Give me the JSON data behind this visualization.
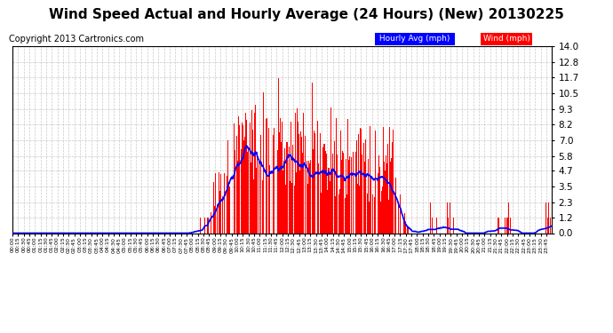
{
  "title": "Wind Speed Actual and Hourly Average (24 Hours) (New) 20130225",
  "copyright": "Copyright 2013 Cartronics.com",
  "yticks": [
    0.0,
    1.2,
    2.3,
    3.5,
    4.7,
    5.8,
    7.0,
    8.2,
    9.3,
    10.5,
    11.7,
    12.8,
    14.0
  ],
  "ylim": [
    0.0,
    14.0
  ],
  "bar_color": "#FF0000",
  "line_color": "#0000FF",
  "bg_color": "#FFFFFF",
  "grid_color": "#BBBBBB",
  "legend_hourly_bg": "#0000FF",
  "legend_wind_bg": "#FF0000",
  "title_fontsize": 11,
  "copyright_fontsize": 7
}
